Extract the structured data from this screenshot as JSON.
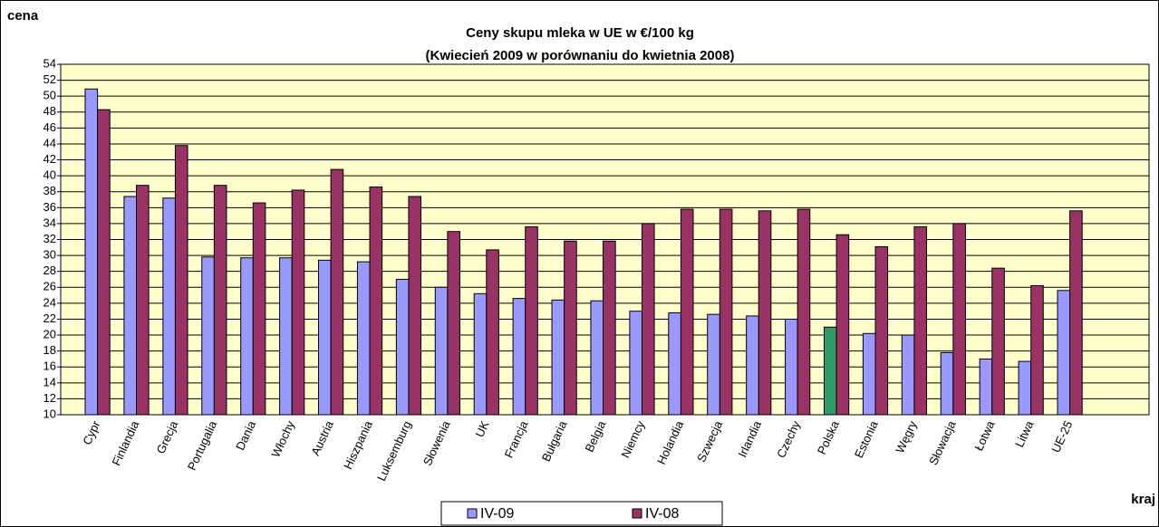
{
  "chart_data": {
    "type": "bar",
    "title": "Ceny skupu mleka w UE w €/100 kg",
    "subtitle": "(Kwiecień 2009 w porównaniu do kwietnia 2008)",
    "y_label": "cena",
    "x_label": "kraj",
    "categories": [
      "Cypr",
      "Finlandia",
      "Grecja",
      "Portugalia",
      "Dania",
      "Włochy",
      "Austria",
      "Hiszpania",
      "Luksemburg",
      "Słowenia",
      "UK",
      "Francja",
      "Bułgaria",
      "Belgia",
      "Niemcy",
      "Holandia",
      "Szwecja",
      "Irlandia",
      "Czechy",
      "Polska",
      "Estonia",
      "Węgry",
      "Słowacja",
      "Łotwa",
      "Litwa",
      "UE-25"
    ],
    "series": [
      {
        "name": "IV-09",
        "color": "#9999ff",
        "colors": [
          "#9999ff",
          "#9999ff",
          "#9999ff",
          "#9999ff",
          "#9999ff",
          "#9999ff",
          "#9999ff",
          "#9999ff",
          "#9999ff",
          "#9999ff",
          "#9999ff",
          "#9999ff",
          "#9999ff",
          "#9999ff",
          "#9999ff",
          "#9999ff",
          "#9999ff",
          "#9999ff",
          "#9999ff",
          "#339966",
          "#9999ff",
          "#9999ff",
          "#9999ff",
          "#9999ff",
          "#9999ff",
          "#9999ff"
        ],
        "values": [
          50.9,
          37.4,
          37.2,
          29.8,
          29.7,
          29.7,
          29.4,
          29.2,
          27.0,
          26.0,
          25.2,
          24.6,
          24.4,
          24.3,
          23.0,
          22.8,
          22.6,
          22.4,
          22.0,
          21.0,
          20.2,
          20.0,
          17.8,
          17.0,
          16.7,
          25.6
        ]
      },
      {
        "name": "IV-08",
        "color": "#993366",
        "values": [
          48.3,
          38.8,
          43.8,
          38.8,
          36.6,
          38.2,
          40.8,
          38.6,
          37.4,
          33.0,
          30.7,
          33.6,
          31.8,
          31.8,
          34.0,
          35.8,
          35.8,
          35.6,
          35.8,
          32.6,
          31.1,
          33.6,
          34.0,
          28.4,
          26.2,
          35.6
        ]
      }
    ],
    "ylim": [
      10,
      54
    ],
    "yticks": [
      10,
      12,
      14,
      16,
      18,
      20,
      22,
      24,
      26,
      28,
      30,
      32,
      34,
      36,
      38,
      40,
      42,
      44,
      46,
      48,
      50,
      52,
      54
    ],
    "grid": true,
    "legend": "bottom"
  }
}
